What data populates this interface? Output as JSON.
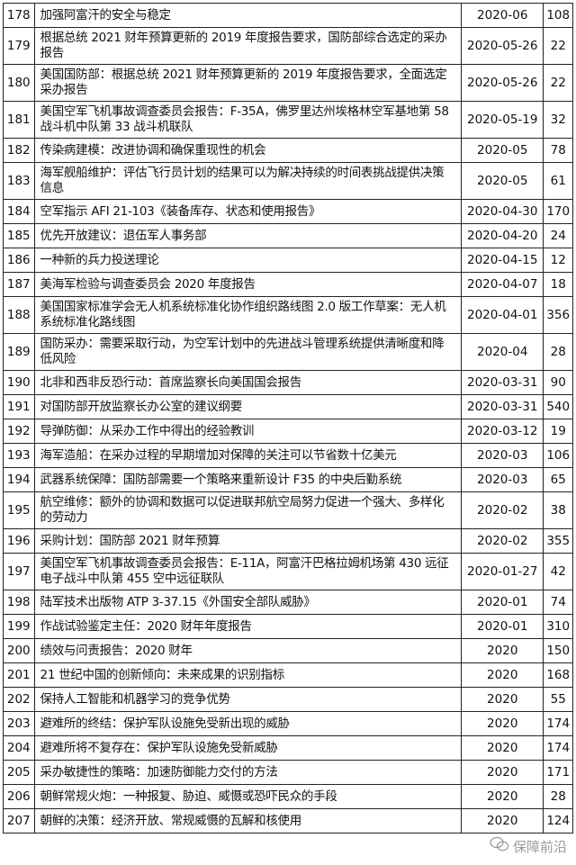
{
  "rows": [
    {
      "no": "178",
      "title": "加强阿富汗的安全与稳定",
      "date": "2020-06",
      "pages": "108"
    },
    {
      "no": "179",
      "title": "根据总统 2021 财年预算更新的 2019 年度报告要求，国防部综合选定的采办报告",
      "date": "2020-05-26",
      "pages": "22"
    },
    {
      "no": "180",
      "title": "美国国防部：根据总统 2021 财年预算更新的 2019 年度报告要求，全面选定采办报告",
      "date": "2020-05-26",
      "pages": "22"
    },
    {
      "no": "181",
      "title": "美国空军飞机事故调查委员会报告：F-35A，佛罗里达州埃格林空军基地第 58 战斗机中队第 33 战斗机联队",
      "date": "2020-05-19",
      "pages": "32"
    },
    {
      "no": "182",
      "title": "传染病建模：改进协调和确保重现性的机会",
      "date": "2020-05",
      "pages": "78"
    },
    {
      "no": "183",
      "title": "海军舰船维护：评估飞行员计划的结果可以为解决持续的时间表挑战提供决策信息",
      "date": "2020-05",
      "pages": "61"
    },
    {
      "no": "184",
      "title": "空军指示 AFI 21-103《装备库存、状态和使用报告》",
      "date": "2020-04-30",
      "pages": "170"
    },
    {
      "no": "185",
      "title": "优先开放建议：退伍军人事务部",
      "date": "2020-04-20",
      "pages": "24"
    },
    {
      "no": "186",
      "title": "一种新的兵力投送理论",
      "date": "2020-04-15",
      "pages": "12"
    },
    {
      "no": "187",
      "title": "美海军检验与调查委员会 2020 年度报告",
      "date": "2020-04-07",
      "pages": "18"
    },
    {
      "no": "188",
      "title": "美国国家标准学会无人机系统标准化协作组织路线图 2.0 版工作草案：无人机系统标准化路线图",
      "date": "2020-04-01",
      "pages": "356"
    },
    {
      "no": "189",
      "title": "国防采办：需要采取行动，为空军计划中的先进战斗管理系统提供清晰度和降低风险",
      "date": "2020-04",
      "pages": "28"
    },
    {
      "no": "190",
      "title": "北非和西非反恐行动：首席监察长向美国国会报告",
      "date": "2020-03-31",
      "pages": "90"
    },
    {
      "no": "191",
      "title": "对国防部开放监察长办公室的建议纲要",
      "date": "2020-03-31",
      "pages": "540"
    },
    {
      "no": "192",
      "title": "导弹防御：从采办工作中得出的经验教训",
      "date": "2020-03-12",
      "pages": "19"
    },
    {
      "no": "193",
      "title": "海军造船：在采办过程的早期增加对保障的关注可以节省数十亿美元",
      "date": "2020-03",
      "pages": "106"
    },
    {
      "no": "194",
      "title": "武器系统保障：国防部需要一个策略来重新设计 F35 的中央后勤系统",
      "date": "2020-03",
      "pages": "65"
    },
    {
      "no": "195",
      "title": "航空维修：额外的协调和数据可以促进联邦航空局努力促进一个强大、多样化的劳动力",
      "date": "2020-02",
      "pages": "38"
    },
    {
      "no": "196",
      "title": "采购计划：国防部 2021 财年预算",
      "date": "2020-02",
      "pages": "355"
    },
    {
      "no": "197",
      "title": "美国空军飞机事故调查委员会报告：E-11A，阿富汗巴格拉姆机场第 430 远征电子战斗中队第 455 空中远征联队",
      "date": "2020-01-27",
      "pages": "42"
    },
    {
      "no": "198",
      "title": "陆军技术出版物 ATP 3-37.15《外国安全部队威胁》",
      "date": "2020-01",
      "pages": "74"
    },
    {
      "no": "199",
      "title": "作战试验鉴定主任：2020 财年年度报告",
      "date": "2020-01",
      "pages": "310"
    },
    {
      "no": "200",
      "title": "绩效与问责报告：2020 财年",
      "date": "2020",
      "pages": "150"
    },
    {
      "no": "201",
      "title": "21 世纪中国的创新倾向：未来成果的识别指标",
      "date": "2020",
      "pages": "168"
    },
    {
      "no": "202",
      "title": "保持人工智能和机器学习的竞争优势",
      "date": "2020",
      "pages": "55"
    },
    {
      "no": "203",
      "title": "避难所的终结：保护军队设施免受新出现的威胁",
      "date": "2020",
      "pages": "174"
    },
    {
      "no": "204",
      "title": "避难所将不复存在：保护军队设施免受新威胁",
      "date": "2020",
      "pages": "174"
    },
    {
      "no": "205",
      "title": "采办敏捷性的策略：加速防御能力交付的方法",
      "date": "2020",
      "pages": "171"
    },
    {
      "no": "206",
      "title": "朝鲜常规火炮：一种报复、胁迫、威慑或恐吓民众的手段",
      "date": "2020",
      "pages": "28"
    },
    {
      "no": "207",
      "title": "朝鲜的决策：经济开放、常规威慑的瓦解和核使用",
      "date": "2020",
      "pages": "124"
    }
  ],
  "watermark": {
    "text": "保障前沿",
    "icon": "wechat-icon"
  }
}
